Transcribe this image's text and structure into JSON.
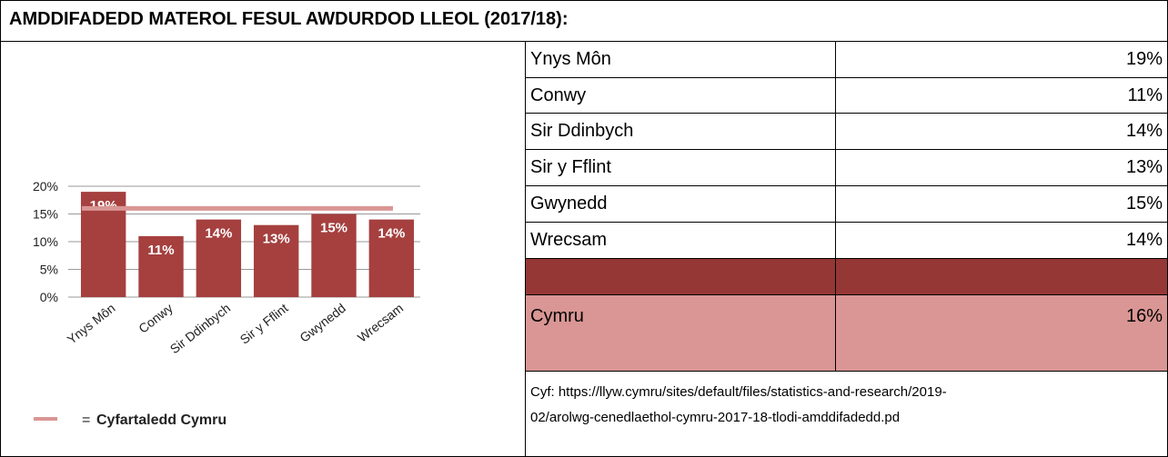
{
  "title": "AMDDIFADEDD MATEROL FESUL AWDURDOD LLEOL (2017/18):",
  "chart_data": {
    "type": "bar",
    "categories": [
      "Ynys Môn",
      "Conwy",
      "Sir Ddinbych",
      "Sir y Fflint",
      "Gwynedd",
      "Wrecsam"
    ],
    "values": [
      19,
      11,
      14,
      13,
      15,
      14
    ],
    "value_labels": [
      "19%",
      "11%",
      "14%",
      "13%",
      "15%",
      "14%"
    ],
    "color": "#a5403f",
    "ylim": [
      0,
      20
    ],
    "yticks": [
      {
        "value": 0,
        "label": "0%"
      },
      {
        "value": 5,
        "label": "5%"
      },
      {
        "value": 10,
        "label": "10%"
      },
      {
        "value": 15,
        "label": "15%"
      },
      {
        "value": 20,
        "label": "20%"
      }
    ],
    "grid": true,
    "average": {
      "value": 16,
      "color": "#d99694"
    },
    "legend": {
      "symbol": "=",
      "label": "Cyfartaledd Cymru"
    }
  },
  "table": {
    "rows": [
      [
        "Ynys Môn",
        "19%"
      ],
      [
        "Conwy",
        "11%"
      ],
      [
        "Sir Ddinbych",
        "14%"
      ],
      [
        "Sir y Fflint",
        "13%"
      ],
      [
        "Gwynedd",
        "15%"
      ],
      [
        "Wrecsam",
        "14%"
      ]
    ],
    "total": [
      "Cymru",
      "16%"
    ],
    "source": [
      "Cyf:  https://llyw.cymru/sites/default/files/statistics-and-research/2019-",
      "02/arolwg-cenedlaethol-cymru-2017-18-tlodi-amddifadedd.pd"
    ]
  }
}
